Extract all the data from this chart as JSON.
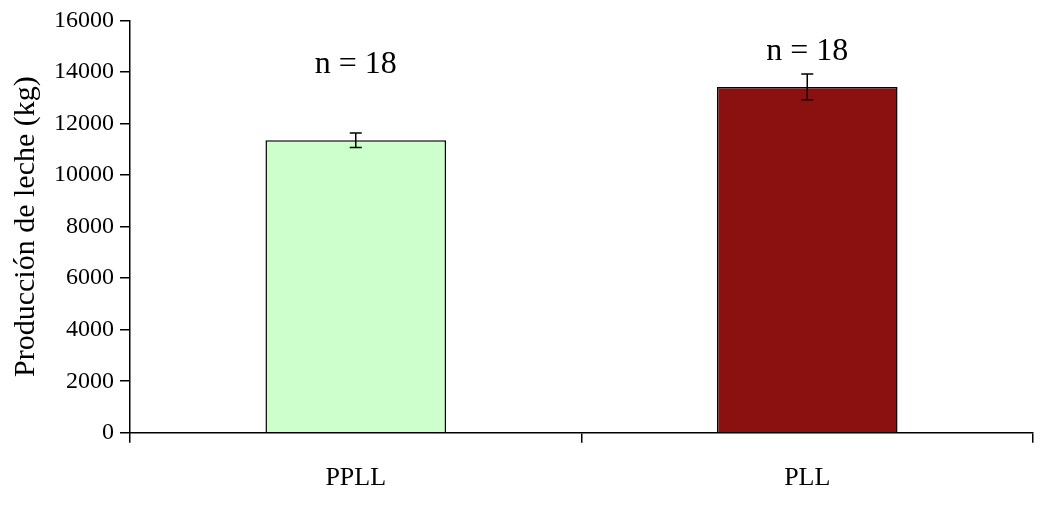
{
  "chart_data": {
    "type": "bar",
    "ylabel": "Producción de leche (kg)",
    "categories": [
      "PPLL",
      "PLL"
    ],
    "series": [
      {
        "colors": [
          "#ccffcc",
          "#8b1111"
        ],
        "values": [
          11350,
          13420
        ],
        "errors": [
          280,
          500
        ]
      }
    ],
    "ylim": [
      0,
      16000
    ],
    "yticks": [
      0,
      2000,
      4000,
      6000,
      8000,
      10000,
      12000,
      14000,
      16000
    ],
    "grid": false,
    "legend": false,
    "annotations": [
      "n = 18",
      "n = 18"
    ]
  }
}
